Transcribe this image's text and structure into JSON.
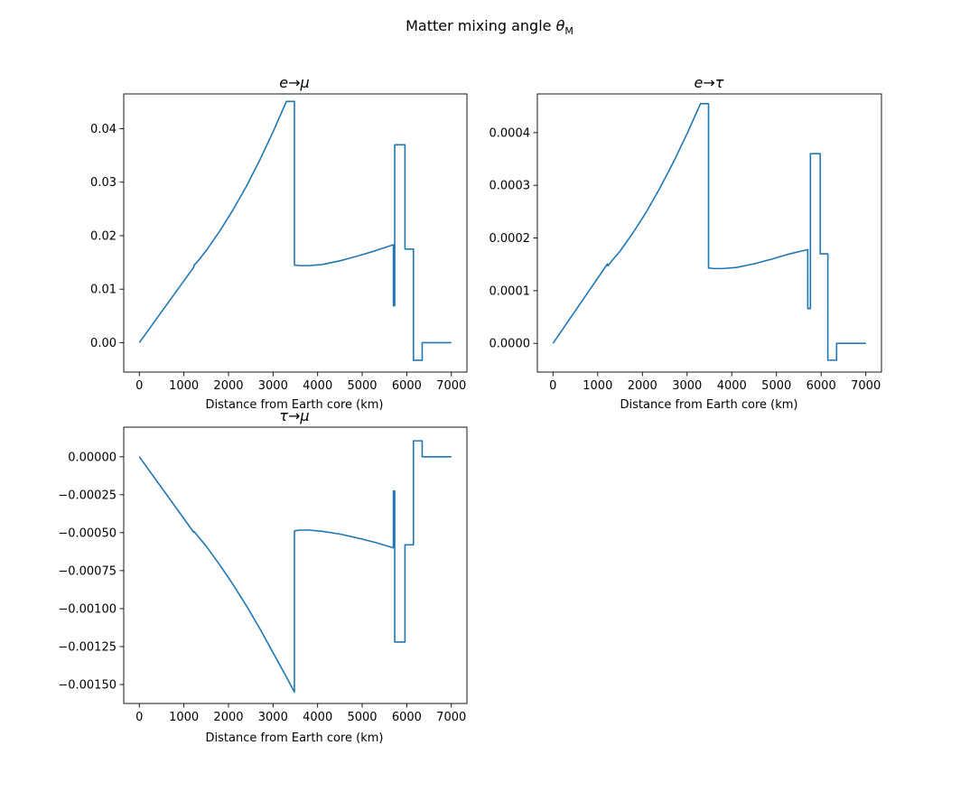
{
  "figure": {
    "title": "Matter mixing angle",
    "title_symbol": "θ",
    "title_subscript": "M",
    "line_color": "#1f77b4"
  },
  "chart_data": [
    {
      "type": "line",
      "title": "e→μ",
      "xlabel": "Distance from Earth core (km)",
      "ylabel": "",
      "xlim": [
        -350,
        7350
      ],
      "ylim": [
        -0.0055,
        0.0465
      ],
      "xticks": [
        0,
        1000,
        2000,
        3000,
        4000,
        5000,
        6000,
        7000
      ],
      "xtick_labels": [
        "0",
        "1000",
        "2000",
        "3000",
        "4000",
        "5000",
        "6000",
        "7000"
      ],
      "yticks": [
        0.0,
        0.01,
        0.02,
        0.03,
        0.04
      ],
      "ytick_labels": [
        "0.00",
        "0.01",
        "0.02",
        "0.03",
        "0.04"
      ],
      "grid": false,
      "series": [
        {
          "x": [
            0,
            1220,
            1230,
            1300,
            1500,
            1800,
            2100,
            2400,
            2700,
            3000,
            3300,
            3480,
            3480,
            3600,
            3800,
            4100,
            4500,
            4900,
            5300,
            5700,
            5701,
            5730,
            5730,
            5750,
            5750,
            5960,
            5960,
            6150,
            6150,
            6346,
            6346,
            7000
          ],
          "y": [
            0,
            0.0141,
            0.0145,
            0.0151,
            0.0172,
            0.0208,
            0.0248,
            0.0292,
            0.0341,
            0.0394,
            0.0451,
            0.0451,
            0.0145,
            0.0144,
            0.0144,
            0.0146,
            0.0153,
            0.0162,
            0.0172,
            0.0183,
            0.0069,
            0.0069,
            0.037,
            0.037,
            0.037,
            0.037,
            0.0175,
            0.0175,
            -0.0033,
            -0.0033,
            0,
            0
          ]
        }
      ]
    },
    {
      "type": "line",
      "title": "e→τ",
      "xlabel": "Distance from Earth core (km)",
      "ylabel": "",
      "xlim": [
        -350,
        7350
      ],
      "ylim": [
        -5.45e-05,
        0.0004735
      ],
      "xticks": [
        0,
        1000,
        2000,
        3000,
        4000,
        5000,
        6000,
        7000
      ],
      "xtick_labels": [
        "0",
        "1000",
        "2000",
        "3000",
        "4000",
        "5000",
        "6000",
        "7000"
      ],
      "yticks": [
        0.0,
        0.0001,
        0.0002,
        0.0003,
        0.0004
      ],
      "ytick_labels": [
        "0.0000",
        "0.0001",
        "0.0002",
        "0.0003",
        "0.0004"
      ],
      "grid": false,
      "series": [
        {
          "x": [
            0,
            1220,
            1230,
            1300,
            1500,
            1800,
            2100,
            2400,
            2700,
            3000,
            3300,
            3480,
            3480,
            3600,
            3800,
            4100,
            4500,
            4900,
            5300,
            5700,
            5701,
            5760,
            5760,
            5980,
            5980,
            6150,
            6150,
            6346,
            6346,
            7000
          ],
          "y": [
            0,
            0.000151,
            0.000147,
            0.000155,
            0.000175,
            0.000211,
            0.000251,
            0.000296,
            0.000345,
            0.000398,
            0.000455,
            0.000455,
            0.000143,
            0.000142,
            0.000142,
            0.000144,
            0.000151,
            0.00016,
            0.00017,
            0.000178,
            6.6e-05,
            6.6e-05,
            0.00036,
            0.00036,
            0.00017,
            0.00017,
            -3.2e-05,
            -3.2e-05,
            0,
            0
          ]
        }
      ]
    },
    {
      "type": "line",
      "title": "τ→μ",
      "xlabel": "Distance from Earth core (km)",
      "ylabel": "",
      "xlim": [
        -350,
        7350
      ],
      "ylim": [
        -0.001625,
        0.000195
      ],
      "xticks": [
        0,
        1000,
        2000,
        3000,
        4000,
        5000,
        6000,
        7000
      ],
      "xtick_labels": [
        "0",
        "1000",
        "2000",
        "3000",
        "4000",
        "5000",
        "6000",
        "7000"
      ],
      "yticks": [
        0.0,
        -0.00025,
        -0.0005,
        -0.00075,
        -0.001,
        -0.00125,
        -0.0015
      ],
      "ytick_labels": [
        "0.00000",
        "−0.00025",
        "−0.00050",
        "−0.00075",
        "−0.00100",
        "−0.00125",
        "−0.00150"
      ],
      "grid": false,
      "series": [
        {
          "x": [
            0,
            1220,
            1230,
            1300,
            1500,
            1800,
            2100,
            2400,
            2700,
            3000,
            3300,
            3480,
            3480,
            3600,
            3800,
            4100,
            4500,
            4900,
            5300,
            5700,
            5701,
            5730,
            5730,
            5960,
            5960,
            6150,
            6150,
            6346,
            6346,
            7000
          ],
          "y": [
            0,
            -0.000497,
            -0.000493,
            -0.000518,
            -0.000589,
            -0.00071,
            -0.00084,
            -0.00098,
            -0.00113,
            -0.00129,
            -0.00145,
            -0.00155,
            -0.000488,
            -0.000483,
            -0.000483,
            -0.000491,
            -0.000509,
            -0.000535,
            -0.000565,
            -0.0006,
            -0.000225,
            -0.000225,
            -0.00122,
            -0.00122,
            -0.00058,
            -0.00058,
            0.000105,
            0.000105,
            0,
            0
          ]
        }
      ]
    }
  ]
}
